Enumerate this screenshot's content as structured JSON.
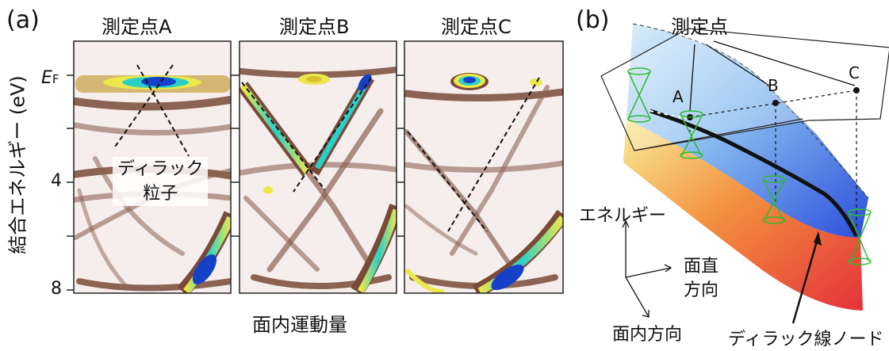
{
  "panel_a": {
    "letter": "(a)",
    "y_axis_label": "結合エネルギー (eV)",
    "x_axis_label": "面内運動量",
    "ef_main": "E",
    "ef_sub": "F",
    "y_ticks": [
      "4",
      "8"
    ],
    "panels": [
      {
        "title": "測定点A"
      },
      {
        "title": "測定点B"
      },
      {
        "title": "測定点C"
      }
    ],
    "annotation_line1": "ディラック",
    "annotation_line2": "粒子"
  },
  "panel_b": {
    "letter": "(b)",
    "measure_points_label": "測定点",
    "points": [
      "A",
      "B",
      "C"
    ],
    "axis_energy": "エネルギー",
    "axis_perp_line1": "面直",
    "axis_perp_line2": "方向",
    "axis_inplane": "面内方向",
    "node_label": "ディラック線ノード"
  },
  "colors": {
    "stripe": "#7a4a38",
    "hot": "#1540c8",
    "cyan": "#2ad0c8",
    "yellow": "#ece84a",
    "cone": "#2fb92f"
  }
}
